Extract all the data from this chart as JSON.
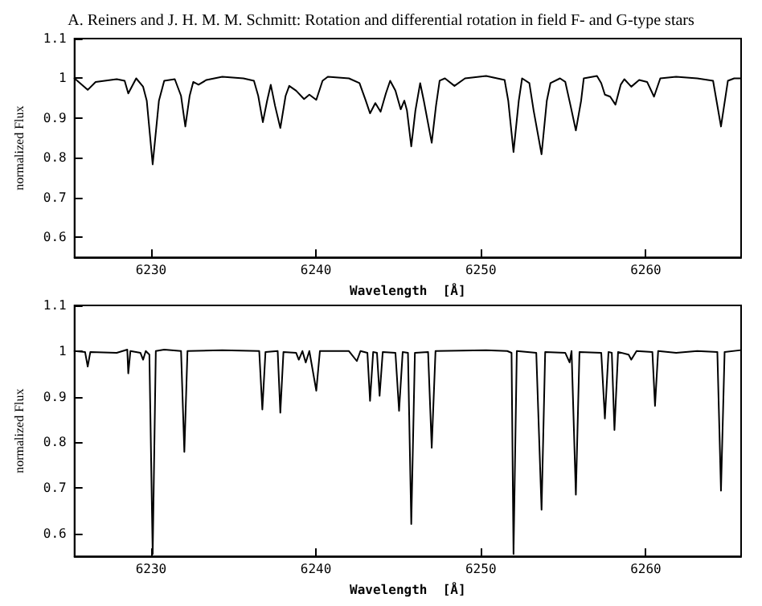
{
  "chart_data": [
    {
      "type": "line",
      "title": "A. Reiners and J. H. M. M. Schmitt: Rotation and differential rotation in field F- and G-type stars",
      "xlabel": "Wavelength  [Å]",
      "ylabel": "normalized Flux",
      "marker": "none",
      "line_style": "solid",
      "grid": false,
      "x": [
        6225.36,
        6226.16,
        6226.64,
        6227.92,
        6228.4,
        6228.62,
        6229.1,
        6229.52,
        6229.74,
        6230.1,
        6230.48,
        6230.8,
        6231.44,
        6231.82,
        6232.08,
        6232.34,
        6232.56,
        6232.88,
        6233.36,
        6234.32,
        6235.6,
        6236.24,
        6236.5,
        6236.78,
        6237.04,
        6237.26,
        6237.52,
        6237.84,
        6238.16,
        6238.38,
        6238.8,
        6239.28,
        6239.6,
        6240.02,
        6240.4,
        6240.72,
        6242.0,
        6242.64,
        6243.02,
        6243.28,
        6243.6,
        6243.92,
        6244.24,
        6244.5,
        6244.82,
        6245.14,
        6245.36,
        6245.52,
        6245.78,
        6246.03,
        6246.32,
        6246.54,
        6247.02,
        6247.28,
        6247.5,
        6247.82,
        6248.4,
        6249.04,
        6250.32,
        6251.44,
        6251.66,
        6251.98,
        6252.3,
        6252.5,
        6252.94,
        6253.2,
        6253.68,
        6254.0,
        6254.22,
        6254.8,
        6255.12,
        6255.44,
        6255.76,
        6256.08,
        6256.24,
        6257.04,
        6257.3,
        6257.52,
        6257.84,
        6258.16,
        6258.48,
        6258.7,
        6259.12,
        6259.6,
        6260.08,
        6260.5,
        6260.88,
        6261.84,
        6263.12,
        6264.08,
        6264.56,
        6264.98,
        6265.36,
        6265.78
      ],
      "series": [
        {
          "color": "#000000",
          "values": [
            1.0,
            0.971,
            0.991,
            0.998,
            0.994,
            0.962,
            1.0,
            0.979,
            0.944,
            0.784,
            0.944,
            0.994,
            0.998,
            0.956,
            0.879,
            0.956,
            0.991,
            0.984,
            0.996,
            1.004,
            1.0,
            0.994,
            0.956,
            0.89,
            0.944,
            0.984,
            0.931,
            0.875,
            0.956,
            0.981,
            0.969,
            0.948,
            0.959,
            0.946,
            0.994,
            1.004,
            1.0,
            0.988,
            0.944,
            0.912,
            0.938,
            0.916,
            0.962,
            0.994,
            0.969,
            0.922,
            0.944,
            0.919,
            0.829,
            0.919,
            0.988,
            0.944,
            0.838,
            0.931,
            0.994,
            1.0,
            0.981,
            1.0,
            1.006,
            0.996,
            0.944,
            0.815,
            0.944,
            1.0,
            0.988,
            0.919,
            0.809,
            0.944,
            0.988,
            1.0,
            0.991,
            0.931,
            0.869,
            0.944,
            1.0,
            1.006,
            0.988,
            0.959,
            0.954,
            0.934,
            0.984,
            0.998,
            0.979,
            0.996,
            0.991,
            0.954,
            1.0,
            1.004,
            1.0,
            0.994,
            0.879,
            0.994,
            1.0,
            1.0
          ]
        }
      ],
      "xlim": [
        6225.36,
        6265.78
      ],
      "xticks": [
        6230,
        6240,
        6250,
        6260
      ],
      "ylim": [
        0.55,
        1.1
      ],
      "yticks": [
        0.6,
        0.7,
        0.8,
        0.9,
        1,
        1.1
      ]
    },
    {
      "type": "line",
      "xlabel": "Wavelength  [Å]",
      "ylabel": "normalized Flux",
      "marker": "none",
      "line_style": "solid",
      "grid": false,
      "x": [
        6225.36,
        6226.0,
        6226.16,
        6226.32,
        6227.92,
        6228.56,
        6228.62,
        6228.75,
        6229.36,
        6229.52,
        6229.68,
        6229.9,
        6230.1,
        6230.29,
        6230.8,
        6231.82,
        6232.02,
        6232.21,
        6234.32,
        6236.56,
        6236.75,
        6236.94,
        6237.68,
        6237.84,
        6238.03,
        6238.8,
        6238.96,
        6239.18,
        6239.38,
        6239.6,
        6240.02,
        6240.24,
        6242.0,
        6242.48,
        6242.7,
        6243.12,
        6243.28,
        6243.47,
        6243.7,
        6243.86,
        6244.05,
        6244.82,
        6245.04,
        6245.26,
        6245.58,
        6245.78,
        6246.0,
        6246.8,
        6247.02,
        6247.25,
        6250.32,
        6251.6,
        6251.86,
        6251.98,
        6252.18,
        6253.36,
        6253.68,
        6253.9,
        6255.12,
        6255.38,
        6255.5,
        6255.76,
        6255.98,
        6257.3,
        6257.52,
        6257.74,
        6257.94,
        6258.1,
        6258.32,
        6258.96,
        6259.12,
        6259.44,
        6260.4,
        6260.56,
        6260.75,
        6261.84,
        6263.12,
        6264.34,
        6264.56,
        6264.78,
        6265.78
      ],
      "series": [
        {
          "color": "#000000",
          "values": [
            1.0,
            0.998,
            0.966,
            0.998,
            0.996,
            1.003,
            0.951,
            1.0,
            0.996,
            0.981,
            1.0,
            0.992,
            0.555,
            1.0,
            1.003,
            1.0,
            0.779,
            1.0,
            1.002,
            1.0,
            0.872,
            0.998,
            1.0,
            0.865,
            0.998,
            0.996,
            0.981,
            1.0,
            0.975,
            1.0,
            0.913,
            1.0,
            1.0,
            0.978,
            1.0,
            0.996,
            0.891,
            0.998,
            0.996,
            0.902,
            0.998,
            0.996,
            0.869,
            0.998,
            0.996,
            0.621,
            0.996,
            0.998,
            0.788,
            1.0,
            1.002,
            1.0,
            0.996,
            0.555,
            1.0,
            0.996,
            0.652,
            0.998,
            0.996,
            0.975,
            1.0,
            0.685,
            0.998,
            0.996,
            0.852,
            0.998,
            0.996,
            0.827,
            0.998,
            0.992,
            0.981,
            1.0,
            0.998,
            0.88,
            1.0,
            0.996,
            1.0,
            0.998,
            0.694,
            0.998,
            1.002
          ]
        }
      ],
      "xlim": [
        6225.36,
        6265.78
      ],
      "xticks": [
        6230,
        6240,
        6250,
        6260
      ],
      "ylim": [
        0.55,
        1.1
      ],
      "yticks": [
        0.6,
        0.7,
        0.8,
        0.9,
        1,
        1.1
      ]
    }
  ]
}
